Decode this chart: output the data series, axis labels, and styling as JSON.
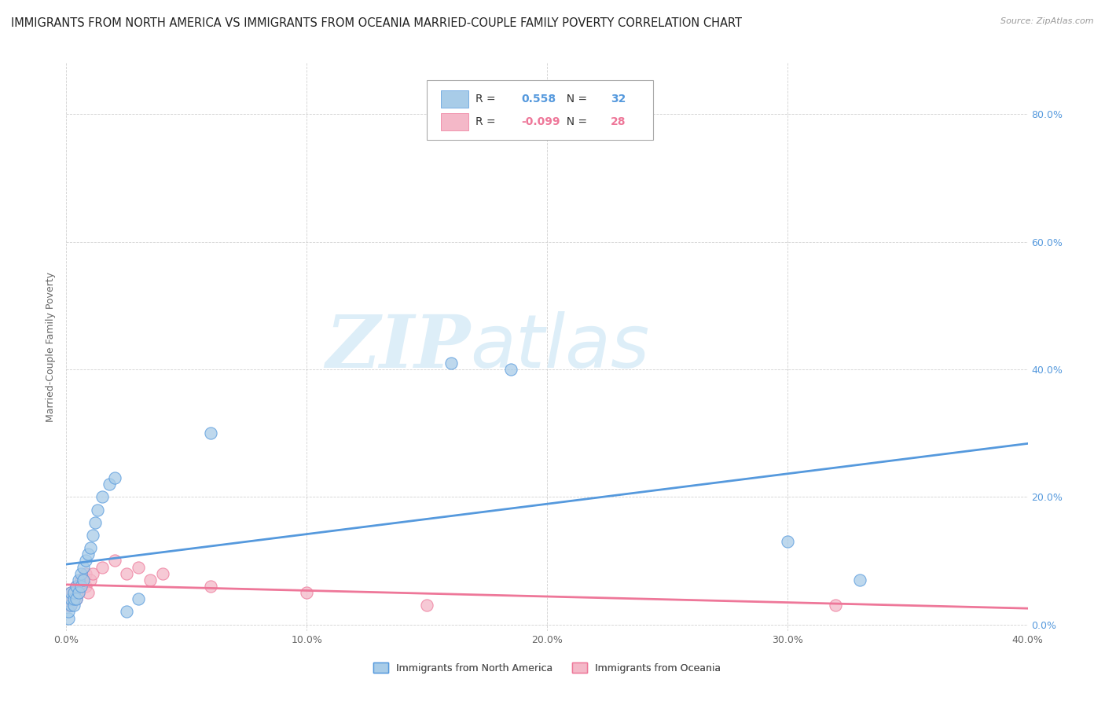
{
  "title": "IMMIGRANTS FROM NORTH AMERICA VS IMMIGRANTS FROM OCEANIA MARRIED-COUPLE FAMILY POVERTY CORRELATION CHART",
  "source": "Source: ZipAtlas.com",
  "ylabel": "Married-Couple Family Poverty",
  "xlim": [
    0.0,
    0.4
  ],
  "ylim": [
    -0.01,
    0.88
  ],
  "xticks": [
    0.0,
    0.1,
    0.2,
    0.3,
    0.4
  ],
  "yticks": [
    0.0,
    0.2,
    0.4,
    0.6,
    0.8
  ],
  "ytick_labels_left": [
    "",
    "",
    "",
    "",
    ""
  ],
  "ytick_labels_right": [
    "0.0%",
    "20.0%",
    "40.0%",
    "60.0%",
    "80.0%"
  ],
  "xtick_labels": [
    "0.0%",
    "10.0%",
    "20.0%",
    "30.0%",
    "40.0%"
  ],
  "R_blue": 0.558,
  "N_blue": 32,
  "R_pink": -0.099,
  "N_pink": 28,
  "blue_color": "#a8cce8",
  "pink_color": "#f4b8c8",
  "blue_line_color": "#5599dd",
  "pink_line_color": "#ee7799",
  "legend_label_blue": "Immigrants from North America",
  "legend_label_pink": "Immigrants from Oceania",
  "blue_points_x": [
    0.001,
    0.001,
    0.002,
    0.002,
    0.002,
    0.003,
    0.003,
    0.003,
    0.004,
    0.004,
    0.005,
    0.005,
    0.006,
    0.006,
    0.007,
    0.007,
    0.008,
    0.009,
    0.01,
    0.011,
    0.012,
    0.013,
    0.015,
    0.018,
    0.02,
    0.025,
    0.03,
    0.06,
    0.16,
    0.185,
    0.3,
    0.33
  ],
  "blue_points_y": [
    0.01,
    0.02,
    0.03,
    0.04,
    0.05,
    0.03,
    0.04,
    0.05,
    0.04,
    0.06,
    0.05,
    0.07,
    0.06,
    0.08,
    0.07,
    0.09,
    0.1,
    0.11,
    0.12,
    0.14,
    0.16,
    0.18,
    0.2,
    0.22,
    0.23,
    0.02,
    0.04,
    0.3,
    0.41,
    0.4,
    0.13,
    0.07
  ],
  "pink_points_x": [
    0.001,
    0.001,
    0.002,
    0.002,
    0.003,
    0.003,
    0.004,
    0.004,
    0.005,
    0.005,
    0.006,
    0.006,
    0.007,
    0.008,
    0.008,
    0.009,
    0.01,
    0.011,
    0.015,
    0.02,
    0.025,
    0.03,
    0.035,
    0.04,
    0.06,
    0.1,
    0.15,
    0.32
  ],
  "pink_points_y": [
    0.03,
    0.04,
    0.03,
    0.05,
    0.04,
    0.05,
    0.04,
    0.06,
    0.05,
    0.06,
    0.06,
    0.07,
    0.07,
    0.06,
    0.08,
    0.05,
    0.07,
    0.08,
    0.09,
    0.1,
    0.08,
    0.09,
    0.07,
    0.08,
    0.06,
    0.05,
    0.03,
    0.03
  ],
  "watermark_zip": "ZIP",
  "watermark_atlas": "atlas",
  "background_color": "#ffffff",
  "grid_color": "#cccccc",
  "title_fontsize": 10.5,
  "axis_label_fontsize": 9,
  "tick_fontsize": 9,
  "right_tick_color": "#5599dd"
}
